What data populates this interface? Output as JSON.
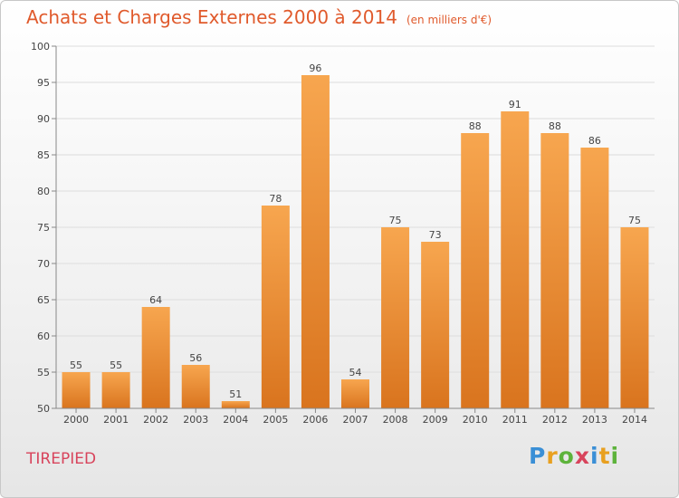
{
  "chart_data": {
    "type": "bar",
    "title": "Achats et Charges Externes 2000 à 2014",
    "subtitle": "(en milliers d'€)",
    "categories": [
      "2000",
      "2001",
      "2002",
      "2003",
      "2004",
      "2005",
      "2006",
      "2007",
      "2008",
      "2009",
      "2010",
      "2011",
      "2012",
      "2013",
      "2014"
    ],
    "values": [
      55,
      55,
      64,
      56,
      51,
      78,
      96,
      54,
      75,
      73,
      88,
      91,
      88,
      86,
      75
    ],
    "ylim": [
      50,
      100
    ],
    "yticks": [
      50,
      55,
      60,
      65,
      70,
      75,
      80,
      85,
      90,
      95,
      100
    ],
    "grid": true,
    "colors": {
      "bar_top": "#f7a64f",
      "bar_bottom": "#d9741e",
      "title": "#e05a2c",
      "place": "#d8445c"
    }
  },
  "footer": {
    "place_name": "TIREPIED",
    "logo_text": "Proxiti"
  }
}
